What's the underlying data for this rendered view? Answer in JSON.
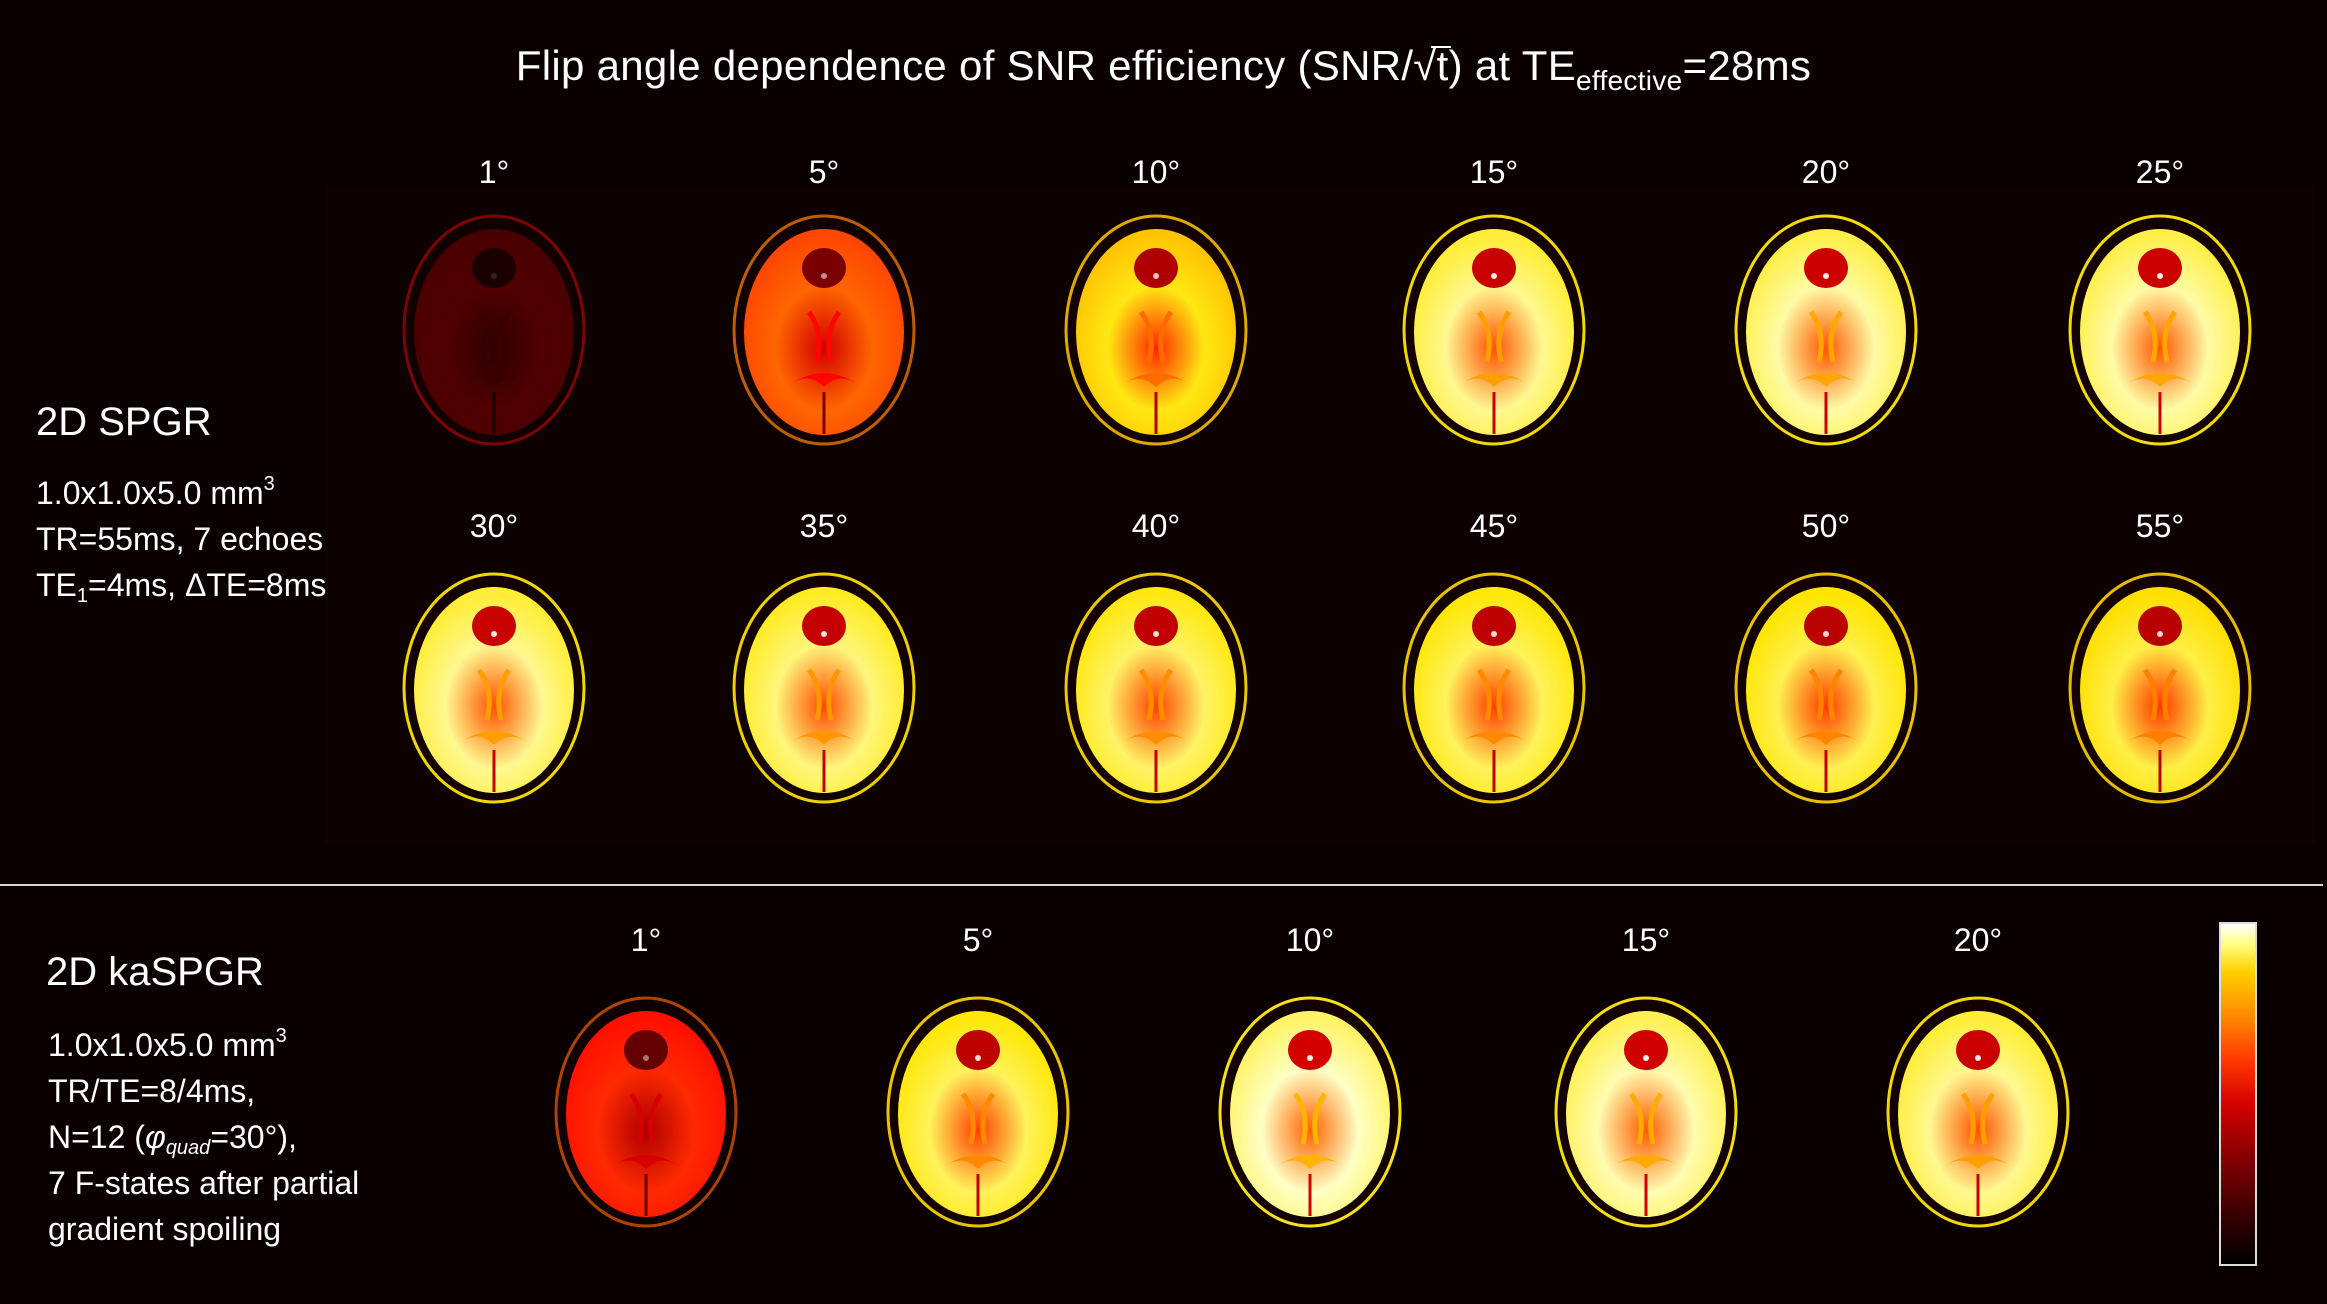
{
  "title": {
    "prefix": "Flip angle dependence of SNR efficiency (SNR/",
    "sqrt_symbol": "√",
    "sqrt_arg": "t",
    "after_sqrt": ") at TE",
    "subscript": "effective",
    "suffix": "=28ms"
  },
  "spgr": {
    "name": "2D SPGR",
    "voxel": "1.0x1.0x5.0 mm",
    "voxel_sup": "3",
    "tr_line": "TR=55ms, 7 echoes",
    "te_prefix": "TE",
    "te_sub": "1",
    "te_suffix": "=4ms, ΔTE=8ms",
    "row1_angles": [
      "1°",
      "5°",
      "10°",
      "15°",
      "20°",
      "25°"
    ],
    "row2_angles": [
      "30°",
      "35°",
      "40°",
      "45°",
      "50°",
      "55°"
    ],
    "row1_intensity": [
      0.12,
      0.55,
      0.78,
      0.9,
      0.92,
      0.92
    ],
    "row2_intensity": [
      0.9,
      0.88,
      0.86,
      0.85,
      0.84,
      0.83
    ]
  },
  "kaspgr": {
    "name": "2D kaSPGR",
    "voxel": "1.0x1.0x5.0 mm",
    "voxel_sup": "3",
    "trte_line": "TR/TE=8/4ms,",
    "n_prefix": "N=12 (",
    "phi_symbol": "φ",
    "phi_sub": "quad",
    "n_suffix": "=30°),",
    "fstates_line": "7 F-states after partial",
    "spoil_line": "gradient spoiling",
    "angles": [
      "1°",
      "5°",
      "10°",
      "15°",
      "20°"
    ],
    "intensity": [
      0.45,
      0.85,
      0.95,
      0.93,
      0.9
    ]
  },
  "colors": {
    "background": "#0b0000",
    "colormap": [
      "#000000",
      "#8a0000",
      "#d40000",
      "#ff8a00",
      "#ffd000",
      "#ffffff"
    ]
  }
}
